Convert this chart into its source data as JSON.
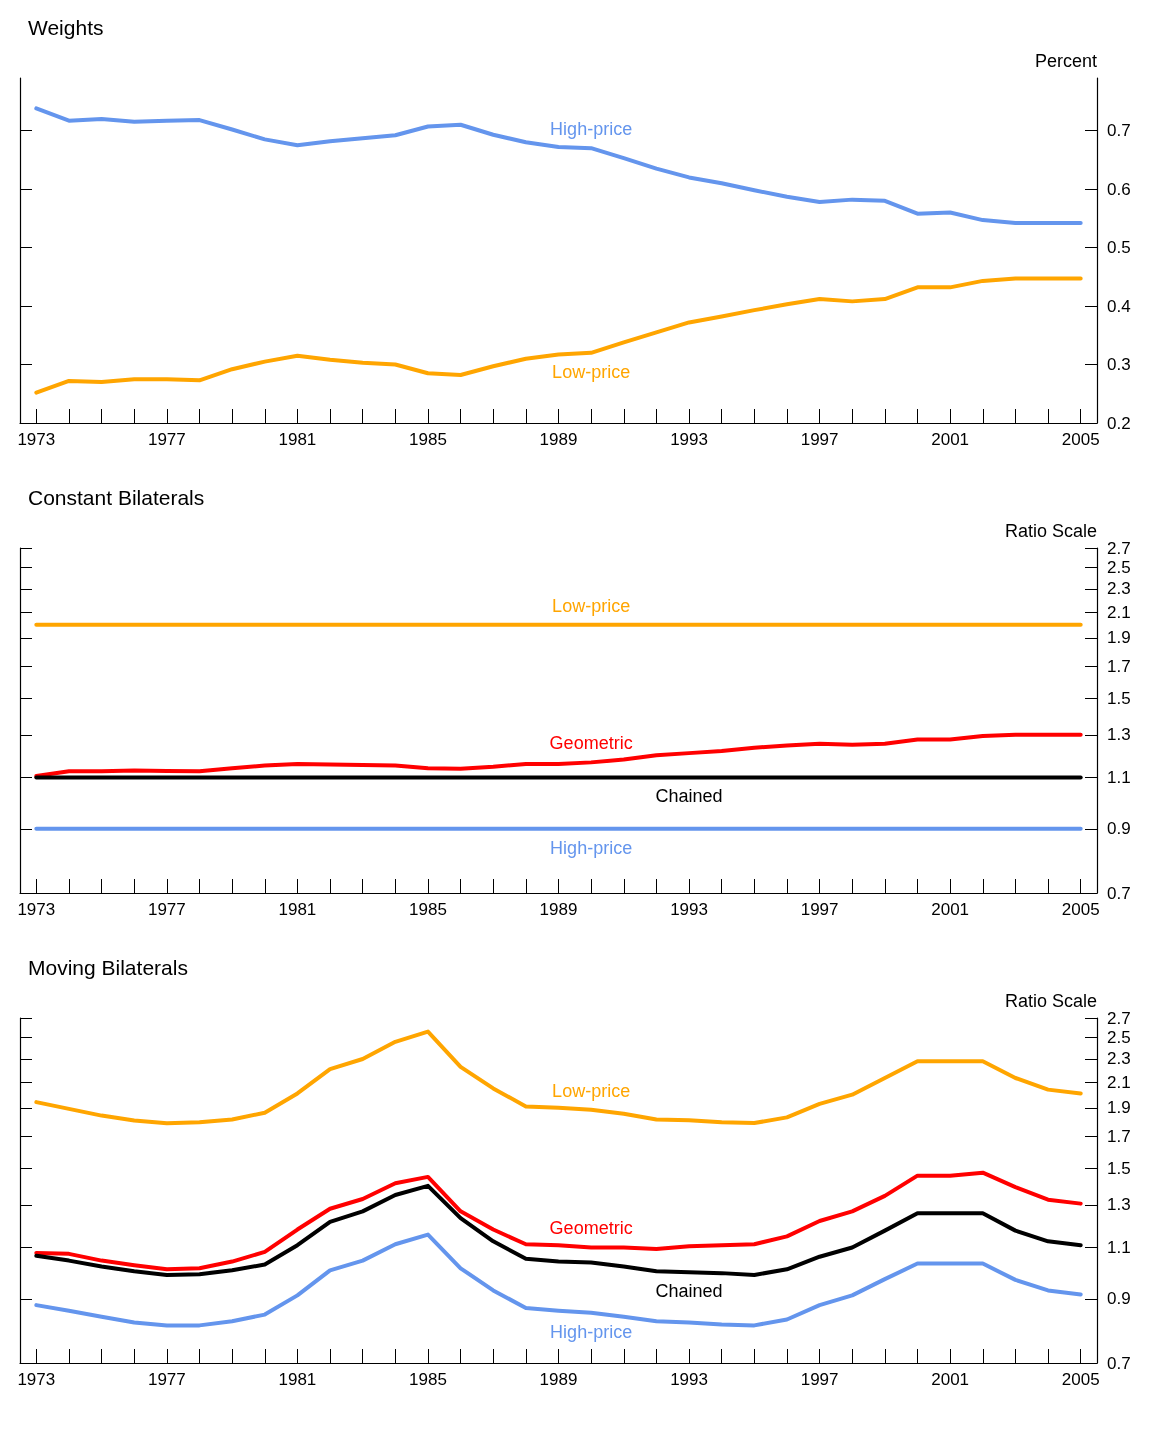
{
  "chart_data": [
    {
      "type": "line",
      "title": "Weights",
      "ylabel": "Percent",
      "x": [
        1973,
        1974,
        1975,
        1976,
        1977,
        1978,
        1979,
        1980,
        1981,
        1982,
        1983,
        1984,
        1985,
        1986,
        1987,
        1988,
        1989,
        1990,
        1991,
        1992,
        1993,
        1994,
        1995,
        1996,
        1997,
        1998,
        1999,
        2000,
        2001,
        2002,
        2003,
        2004,
        2005
      ],
      "xlim": [
        1972.5,
        2005.5
      ],
      "xticks": [
        1973,
        {
          "value": 1974,
          "label": null
        },
        {
          "value": 1975,
          "label": null
        },
        {
          "value": 1976,
          "label": null
        },
        1977,
        {
          "value": 1978,
          "label": null
        },
        {
          "value": 1979,
          "label": null
        },
        {
          "value": 1980,
          "label": null
        },
        1981,
        {
          "value": 1982,
          "label": null
        },
        {
          "value": 1983,
          "label": null
        },
        {
          "value": 1984,
          "label": null
        },
        1985,
        {
          "value": 1986,
          "label": null
        },
        {
          "value": 1987,
          "label": null
        },
        {
          "value": 1988,
          "label": null
        },
        1989,
        {
          "value": 1990,
          "label": null
        },
        {
          "value": 1991,
          "label": null
        },
        {
          "value": 1992,
          "label": null
        },
        1993,
        {
          "value": 1994,
          "label": null
        },
        {
          "value": 1995,
          "label": null
        },
        {
          "value": 1996,
          "label": null
        },
        1997,
        {
          "value": 1998,
          "label": null
        },
        {
          "value": 1999,
          "label": null
        },
        {
          "value": 2000,
          "label": null
        },
        2001,
        {
          "value": 2002,
          "label": null
        },
        {
          "value": 2003,
          "label": null
        },
        {
          "value": 2004,
          "label": null
        },
        2005
      ],
      "ylim": [
        0.2,
        0.79
      ],
      "yticks": [
        0.2,
        0.3,
        0.4,
        0.5,
        0.6,
        0.7
      ],
      "marker": "none",
      "line_style": "solid",
      "series": [
        {
          "name": "High-price",
          "color": "#6495ed",
          "values": [
            0.738,
            0.717,
            0.72,
            0.715,
            0.717,
            0.718,
            0.702,
            0.685,
            0.675,
            0.682,
            0.687,
            0.692,
            0.707,
            0.71,
            0.693,
            0.68,
            0.672,
            0.67,
            0.653,
            0.635,
            0.62,
            0.61,
            0.598,
            0.587,
            0.578,
            0.582,
            0.58,
            0.558,
            0.56,
            0.547,
            0.542,
            0.542,
            0.542
          ]
        },
        {
          "name": "Low-price",
          "color": "#ffa500",
          "values": [
            0.252,
            0.272,
            0.27,
            0.275,
            0.275,
            0.273,
            0.292,
            0.305,
            0.315,
            0.308,
            0.303,
            0.3,
            0.285,
            0.282,
            0.297,
            0.31,
            0.317,
            0.32,
            0.338,
            0.355,
            0.372,
            0.382,
            0.393,
            0.403,
            0.412,
            0.408,
            0.412,
            0.432,
            0.432,
            0.443,
            0.447,
            0.447,
            0.447
          ]
        }
      ]
    },
    {
      "type": "line",
      "title": "Constant Bilaterals",
      "ylabel": "Ratio Scale",
      "log": "y",
      "x": [
        1973,
        1974,
        1975,
        1976,
        1977,
        1978,
        1979,
        1980,
        1981,
        1982,
        1983,
        1984,
        1985,
        1986,
        1987,
        1988,
        1989,
        1990,
        1991,
        1992,
        1993,
        1994,
        1995,
        1996,
        1997,
        1998,
        1999,
        2000,
        2001,
        2002,
        2003,
        2004,
        2005
      ],
      "xlim": [
        1972.5,
        2005.5
      ],
      "xticks": [
        1973,
        {
          "value": 1974,
          "label": null
        },
        {
          "value": 1975,
          "label": null
        },
        {
          "value": 1976,
          "label": null
        },
        1977,
        {
          "value": 1978,
          "label": null
        },
        {
          "value": 1979,
          "label": null
        },
        {
          "value": 1980,
          "label": null
        },
        1981,
        {
          "value": 1982,
          "label": null
        },
        {
          "value": 1983,
          "label": null
        },
        {
          "value": 1984,
          "label": null
        },
        1985,
        {
          "value": 1986,
          "label": null
        },
        {
          "value": 1987,
          "label": null
        },
        {
          "value": 1988,
          "label": null
        },
        1989,
        {
          "value": 1990,
          "label": null
        },
        {
          "value": 1991,
          "label": null
        },
        {
          "value": 1992,
          "label": null
        },
        1993,
        {
          "value": 1994,
          "label": null
        },
        {
          "value": 1995,
          "label": null
        },
        {
          "value": 1996,
          "label": null
        },
        1997,
        {
          "value": 1998,
          "label": null
        },
        {
          "value": 1999,
          "label": null
        },
        {
          "value": 2000,
          "label": null
        },
        2001,
        {
          "value": 2002,
          "label": null
        },
        {
          "value": 2003,
          "label": null
        },
        {
          "value": 2004,
          "label": null
        },
        2005
      ],
      "ylim": [
        0.7,
        2.7
      ],
      "yticks": [
        0.7,
        0.9,
        1.1,
        1.3,
        1.5,
        1.7,
        1.9,
        2.1,
        2.3,
        2.5,
        2.7
      ],
      "marker": "none",
      "line_style": "solid",
      "series": [
        {
          "name": "High-price",
          "color": "#6495ed",
          "values": [
            0.9,
            0.9,
            0.9,
            0.9,
            0.9,
            0.9,
            0.9,
            0.9,
            0.9,
            0.9,
            0.9,
            0.9,
            0.9,
            0.9,
            0.9,
            0.9,
            0.9,
            0.9,
            0.9,
            0.9,
            0.9,
            0.9,
            0.9,
            0.9,
            0.9,
            0.9,
            0.9,
            0.9,
            0.9,
            0.9,
            0.9,
            0.9,
            0.9
          ]
        },
        {
          "name": "Low-price",
          "color": "#ffa500",
          "values": [
            2.0,
            2.0,
            2.0,
            2.0,
            2.0,
            2.0,
            2.0,
            2.0,
            2.0,
            2.0,
            2.0,
            2.0,
            2.0,
            2.0,
            2.0,
            2.0,
            2.0,
            2.0,
            2.0,
            2.0,
            2.0,
            2.0,
            2.0,
            2.0,
            2.0,
            2.0,
            2.0,
            2.0,
            2.0,
            2.0,
            2.0,
            2.0,
            2.0
          ]
        },
        {
          "name": "Geometric",
          "color": "#ff0000",
          "values": [
            1.106,
            1.127,
            1.127,
            1.13,
            1.128,
            1.127,
            1.14,
            1.153,
            1.16,
            1.157,
            1.155,
            1.153,
            1.14,
            1.138,
            1.147,
            1.16,
            1.16,
            1.167,
            1.18,
            1.2,
            1.21,
            1.22,
            1.236,
            1.247,
            1.255,
            1.25,
            1.255,
            1.276,
            1.276,
            1.294,
            1.3,
            1.3,
            1.3
          ]
        },
        {
          "name": "Chained",
          "color": "#000000",
          "values": [
            1.1,
            1.1,
            1.1,
            1.1,
            1.1,
            1.1,
            1.1,
            1.1,
            1.1,
            1.1,
            1.1,
            1.1,
            1.1,
            1.1,
            1.1,
            1.1,
            1.1,
            1.1,
            1.1,
            1.1,
            1.1,
            1.1,
            1.1,
            1.1,
            1.1,
            1.1,
            1.1,
            1.1,
            1.1,
            1.1,
            1.1,
            1.1,
            1.1
          ]
        }
      ]
    },
    {
      "type": "line",
      "title": "Moving Bilaterals",
      "ylabel": "Ratio Scale",
      "log": "y",
      "x": [
        1973,
        1974,
        1975,
        1976,
        1977,
        1978,
        1979,
        1980,
        1981,
        1982,
        1983,
        1984,
        1985,
        1986,
        1987,
        1988,
        1989,
        1990,
        1991,
        1992,
        1993,
        1994,
        1995,
        1996,
        1997,
        1998,
        1999,
        2000,
        2001,
        2002,
        2003,
        2004,
        2005
      ],
      "xlim": [
        1972.5,
        2005.5
      ],
      "xticks": [
        1973,
        {
          "value": 1974,
          "label": null
        },
        {
          "value": 1975,
          "label": null
        },
        {
          "value": 1976,
          "label": null
        },
        1977,
        {
          "value": 1978,
          "label": null
        },
        {
          "value": 1979,
          "label": null
        },
        {
          "value": 1980,
          "label": null
        },
        1981,
        {
          "value": 1982,
          "label": null
        },
        {
          "value": 1983,
          "label": null
        },
        {
          "value": 1984,
          "label": null
        },
        1985,
        {
          "value": 1986,
          "label": null
        },
        {
          "value": 1987,
          "label": null
        },
        {
          "value": 1988,
          "label": null
        },
        1989,
        {
          "value": 1990,
          "label": null
        },
        {
          "value": 1991,
          "label": null
        },
        {
          "value": 1992,
          "label": null
        },
        1993,
        {
          "value": 1994,
          "label": null
        },
        {
          "value": 1995,
          "label": null
        },
        {
          "value": 1996,
          "label": null
        },
        1997,
        {
          "value": 1998,
          "label": null
        },
        {
          "value": 1999,
          "label": null
        },
        {
          "value": 2000,
          "label": null
        },
        2001,
        {
          "value": 2002,
          "label": null
        },
        {
          "value": 2003,
          "label": null
        },
        {
          "value": 2004,
          "label": null
        },
        2005
      ],
      "ylim": [
        0.7,
        2.7
      ],
      "yticks": [
        0.7,
        0.9,
        1.1,
        1.3,
        1.5,
        1.7,
        1.9,
        2.1,
        2.3,
        2.5,
        2.7
      ],
      "marker": "none",
      "line_style": "solid",
      "series": [
        {
          "name": "High-price",
          "color": "#6495ed",
          "values": [
            0.878,
            0.859,
            0.839,
            0.82,
            0.811,
            0.811,
            0.824,
            0.846,
            0.912,
            1.006,
            1.045,
            1.114,
            1.157,
            1.014,
            0.93,
            0.868,
            0.859,
            0.852,
            0.839,
            0.824,
            0.82,
            0.814,
            0.811,
            0.83,
            0.878,
            0.912,
            0.972,
            1.033,
            1.033,
            1.033,
            0.969,
            0.93,
            0.915
          ]
        },
        {
          "name": "Low-price",
          "color": "#ffa500",
          "values": [
            1.943,
            1.892,
            1.843,
            1.808,
            1.788,
            1.795,
            1.815,
            1.864,
            2.01,
            2.21,
            2.3,
            2.46,
            2.56,
            2.23,
            2.05,
            1.91,
            1.9,
            1.885,
            1.857,
            1.815,
            1.81,
            1.795,
            1.79,
            1.83,
            1.93,
            2.0,
            2.135,
            2.28,
            2.28,
            2.28,
            2.135,
            2.04,
            2.01
          ]
        },
        {
          "name": "Geometric",
          "color": "#ff0000",
          "values": [
            1.077,
            1.073,
            1.045,
            1.026,
            1.01,
            1.014,
            1.041,
            1.081,
            1.18,
            1.28,
            1.33,
            1.414,
            1.45,
            1.267,
            1.18,
            1.114,
            1.11,
            1.1,
            1.1,
            1.094,
            1.105,
            1.11,
            1.114,
            1.149,
            1.22,
            1.267,
            1.346,
            1.457,
            1.457,
            1.474,
            1.393,
            1.326,
            1.306
          ]
        },
        {
          "name": "Chained",
          "color": "#000000",
          "values": [
            1.065,
            1.045,
            1.021,
            1.002,
            0.988,
            0.991,
            1.006,
            1.029,
            1.11,
            1.216,
            1.267,
            1.351,
            1.4,
            1.234,
            1.127,
            1.053,
            1.041,
            1.037,
            1.021,
            1.002,
            0.998,
            0.995,
            0.988,
            1.01,
            1.061,
            1.1,
            1.175,
            1.258,
            1.258,
            1.258,
            1.175,
            1.127,
            1.11
          ]
        }
      ]
    }
  ]
}
